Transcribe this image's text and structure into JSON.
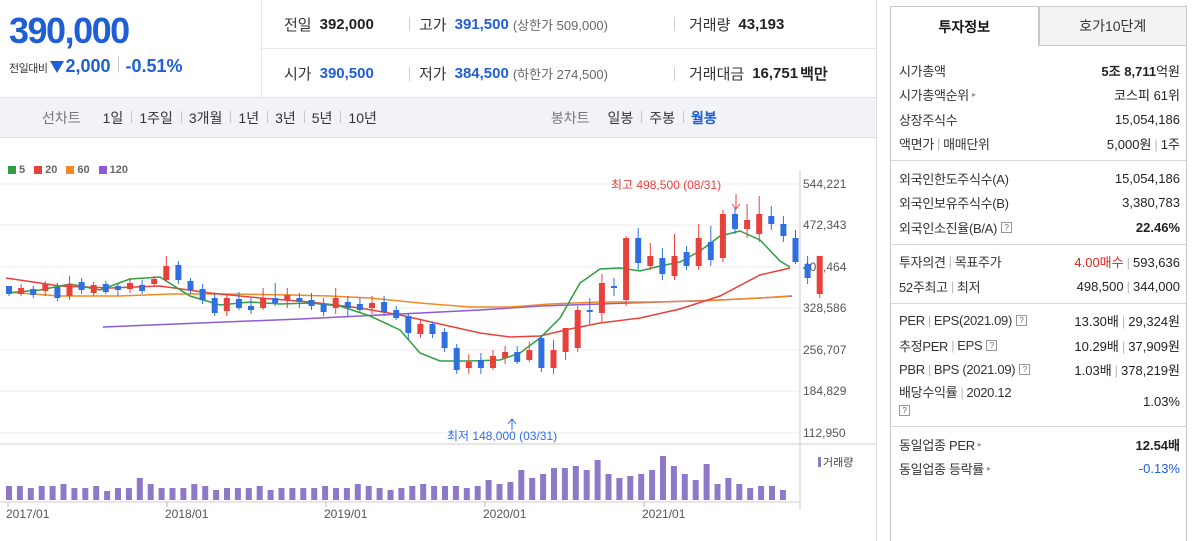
{
  "quote": {
    "current_price": "390,000",
    "change_label": "전일대비",
    "change_value": "2,000",
    "change_rate": "-0.51%",
    "prev_close_label": "전일",
    "prev_close": "392,000",
    "high_label": "고가",
    "high": "391,500",
    "high_sub": "(상한가 509,000)",
    "volume_label": "거래량",
    "volume": "43,193",
    "open_label": "시가",
    "open": "390,500",
    "low_label": "저가",
    "low": "384,500",
    "low_sub": "(하한가 274,500)",
    "amount_label": "거래대금",
    "amount": "16,751",
    "amount_unit": "백만"
  },
  "period_bar": {
    "line_chart_label": "선차트",
    "line_items": [
      "1일",
      "1주일",
      "3개월",
      "1년",
      "3년",
      "5년",
      "10년"
    ],
    "candle_label": "봉차트",
    "candle_items": [
      "일봉",
      "주봉",
      "월봉"
    ],
    "active_candle": "월봉"
  },
  "chart_data": {
    "type": "candlestick",
    "legend": [
      {
        "name": "5",
        "color": "#2ea043"
      },
      {
        "name": "20",
        "color": "#e8413c"
      },
      {
        "name": "60",
        "color": "#f08a24"
      },
      {
        "name": "120",
        "color": "#8e5bd6"
      }
    ],
    "y_ticks": [
      "544,221",
      "472,343",
      "400,464",
      "328,586",
      "256,707",
      "184,829",
      "112,950"
    ],
    "x_ticks": [
      "2017/01",
      "2018/01",
      "2019/01",
      "2020/01",
      "2021/01"
    ],
    "high_annotation": "최고 498,500 (08/31)",
    "low_annotation": "최저 148,000 (03/31)",
    "volume_label": "거래량",
    "up_color": "#e8413c",
    "down_color": "#2f6fe0",
    "volume_color": "#8e79c9"
  },
  "tabs": {
    "invest_info": "투자정보",
    "order_book": "호가10단계"
  },
  "info": {
    "market_cap_label": "시가총액",
    "market_cap_a": "5조",
    "market_cap_b": "8,711",
    "market_cap_unit": "억원",
    "market_cap_rank_label": "시가총액순위",
    "market_cap_rank": "코스피 61위",
    "shares_label": "상장주식수",
    "shares": "15,054,186",
    "par_label": "액면가",
    "unit_label": "매매단위",
    "par": "5,000원",
    "unit": "1주",
    "foreign_limit_label": "외국인한도주식수(A)",
    "foreign_limit": "15,054,186",
    "foreign_hold_label": "외국인보유주식수(B)",
    "foreign_hold": "3,380,783",
    "foreign_ratio_label": "외국인소진율(B/A)",
    "foreign_ratio": "22.46%",
    "opinion_label": "투자의견",
    "target_label": "목표주가",
    "opinion": "4.00매수",
    "target": "593,636",
    "week52_label": "52주최고",
    "week52_low_label": "최저",
    "week52_high": "498,500",
    "week52_low": "344,000",
    "per_label": "PER",
    "eps_label": "EPS(2021.09)",
    "per": "13.30배",
    "eps": "29,324원",
    "est_per_label": "추정PER",
    "est_eps_label": "EPS",
    "est_per": "10.29배",
    "est_eps": "37,909원",
    "pbr_label": "PBR",
    "bps_label": "BPS (2021.09)",
    "pbr": "1.03배",
    "bps": "378,219원",
    "dividend_label": "배당수익률",
    "dividend_period": "2020.12",
    "dividend": "1.03%",
    "industry_per_label": "동일업종 PER",
    "industry_per": "12.54배",
    "industry_chg_label": "동일업종 등락률",
    "industry_chg": "-0.13%"
  }
}
